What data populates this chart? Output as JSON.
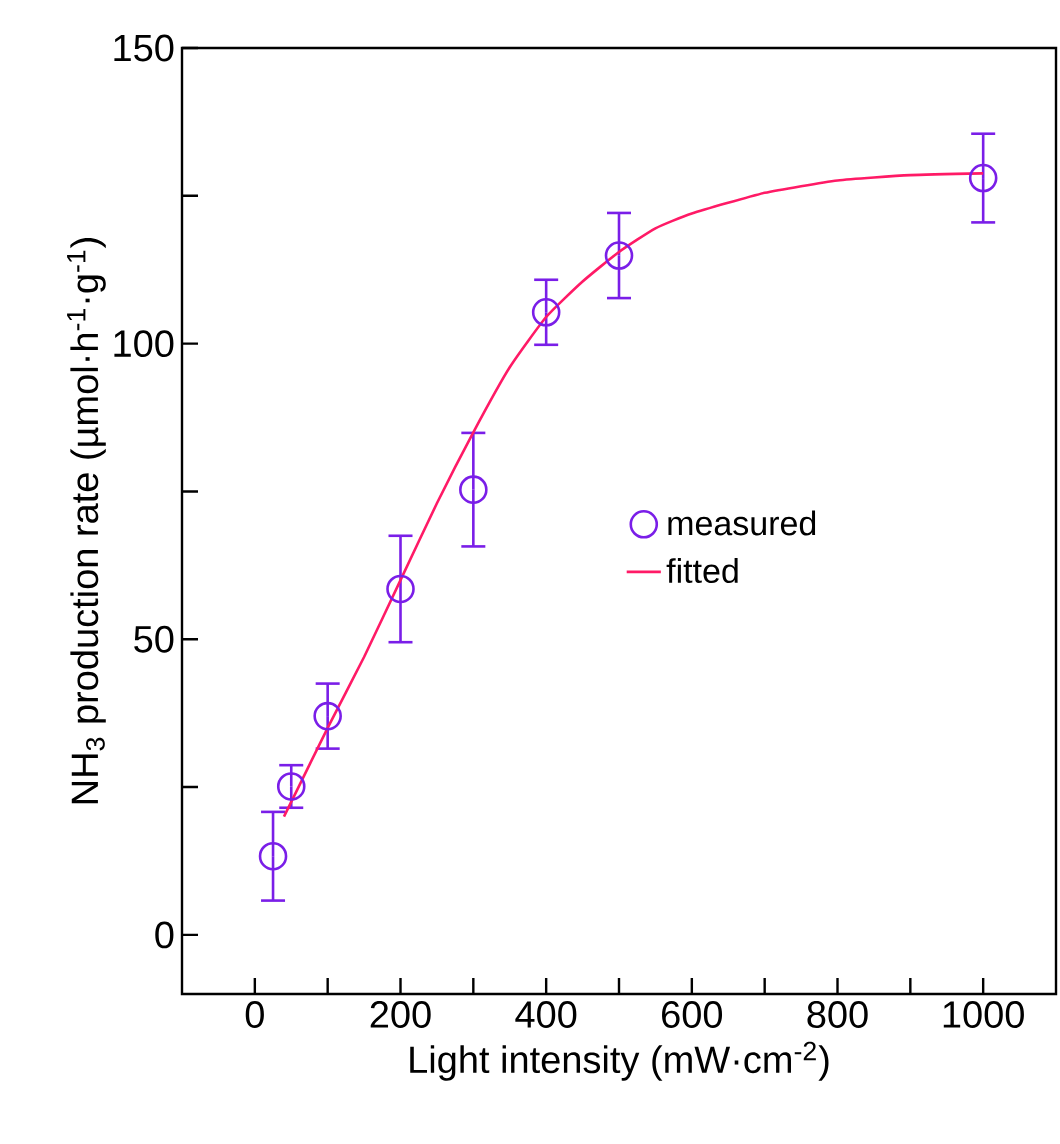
{
  "chart_data": {
    "type": "scatter",
    "xlabel": "Light intensity (mW·cm$^{-2}$)",
    "ylabel": "NH$_{3}$ production rate (µmol·h$^{-1}$·g$^{-1}$)",
    "xlim": [
      -100,
      1100
    ],
    "ylim": [
      -10,
      150
    ],
    "xticks": [
      0,
      {
        "value": 100,
        "label": null
      },
      200,
      {
        "value": 300,
        "label": null
      },
      400,
      {
        "value": 500,
        "label": null
      },
      600,
      {
        "value": 700,
        "label": null
      },
      800,
      {
        "value": 900,
        "label": null
      },
      1000
    ],
    "yticks": [
      0,
      {
        "value": 25,
        "label": null
      },
      50,
      {
        "value": 75,
        "label": null
      },
      100,
      {
        "value": 125,
        "label": null
      },
      150
    ],
    "legend": "right",
    "grid": false,
    "series": [
      {
        "name": "measured",
        "type": "scatter",
        "marker": "circle",
        "color": "#7a1ee8",
        "x": [
          25,
          50,
          100,
          200,
          300,
          400,
          500,
          1000
        ],
        "values": [
          13.3,
          25.1,
          37.0,
          58.5,
          75.3,
          105.3,
          114.9,
          128.0
        ],
        "errors": [
          7.5,
          3.6,
          5.5,
          9.0,
          9.6,
          5.5,
          7.2,
          7.5
        ]
      },
      {
        "name": "fitted",
        "type": "line",
        "marker": "none",
        "line_style": "solid",
        "color": "#ff1a66",
        "x": [
          40,
          50,
          100,
          150,
          200,
          250,
          300,
          350,
          400,
          450,
          500,
          550,
          600,
          700,
          800,
          900,
          1000
        ],
        "values": [
          20,
          22.5,
          35,
          47,
          60,
          73,
          85,
          96,
          104.5,
          110.5,
          115.5,
          119.5,
          122,
          125.5,
          127.6,
          128.5,
          128.8
        ]
      }
    ]
  }
}
